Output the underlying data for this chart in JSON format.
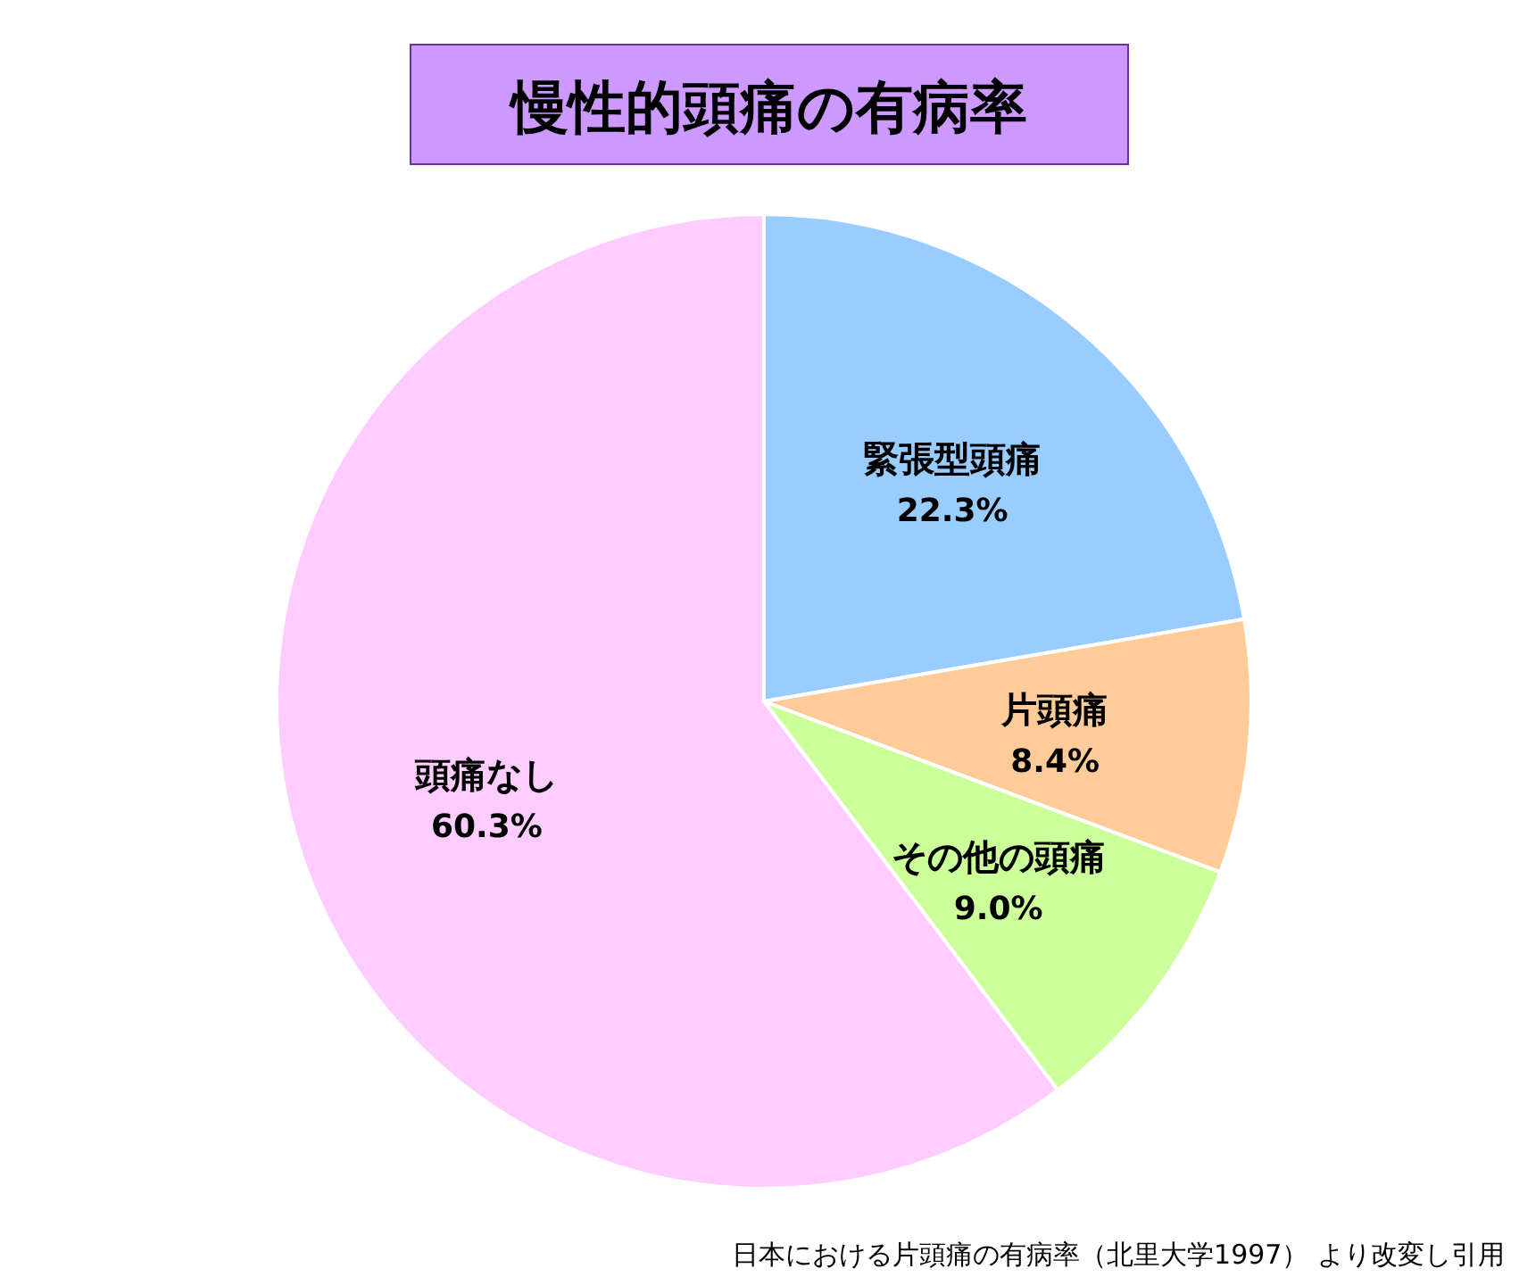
{
  "chart_data": {
    "type": "pie",
    "title": "慢性的頭痛の有病率",
    "categories": [
      "緊張型頭痛",
      "片頭痛",
      "その他の頭痛",
      "頭痛なし"
    ],
    "values": [
      22.3,
      8.4,
      9.0,
      60.3
    ],
    "value_labels": [
      "22.3%",
      "8.4%",
      "9.0%",
      "60.3%"
    ],
    "colors": [
      "#99ccff",
      "#ffcc99",
      "#ccff99",
      "#ffccff"
    ],
    "annotations": [
      "日本における片頭痛の有病率（北里大学1997） より改変し引用"
    ]
  }
}
